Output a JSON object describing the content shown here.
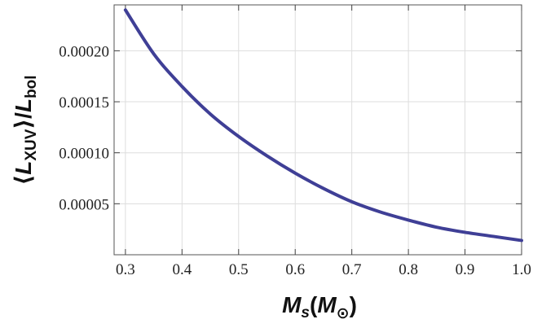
{
  "chart_data": {
    "type": "line",
    "title": "",
    "xlabel_parts": {
      "main": "M",
      "sub": "s",
      "unit_open": "(",
      "unit_main": "M",
      "unit_sub": "⊙",
      "unit_close": ")"
    },
    "ylabel_parts": {
      "open": "⟨",
      "num": "L",
      "num_sub": "XUV",
      "close": "⟩",
      "slash": "/",
      "den": "L",
      "den_sub": "bol"
    },
    "xlim": [
      0.28,
      1.0
    ],
    "ylim": [
      0.0,
      0.000245
    ],
    "xticks": [
      0.3,
      0.4,
      0.5,
      0.6,
      0.7,
      0.8,
      0.9,
      1.0
    ],
    "xtick_labels": [
      "0.3",
      "0.4",
      "0.5",
      "0.6",
      "0.7",
      "0.8",
      "0.9",
      "1.0"
    ],
    "yticks": [
      5e-05,
      0.0001,
      0.00015,
      0.0002
    ],
    "ytick_labels": [
      "0.00005",
      "0.00010",
      "0.00015",
      "0.00020"
    ],
    "grid": true,
    "series": [
      {
        "color": "#3f3f96",
        "x": [
          0.3,
          0.35,
          0.4,
          0.45,
          0.5,
          0.55,
          0.6,
          0.65,
          0.7,
          0.75,
          0.8,
          0.85,
          0.9,
          0.95,
          1.0
        ],
        "y": [
          0.00024,
          0.000197,
          0.000165,
          0.000138,
          0.000116,
          9.7e-05,
          8e-05,
          6.5e-05,
          5.2e-05,
          4.2e-05,
          3.4e-05,
          2.7e-05,
          2.2e-05,
          1.8e-05,
          1.4e-05
        ]
      }
    ]
  }
}
